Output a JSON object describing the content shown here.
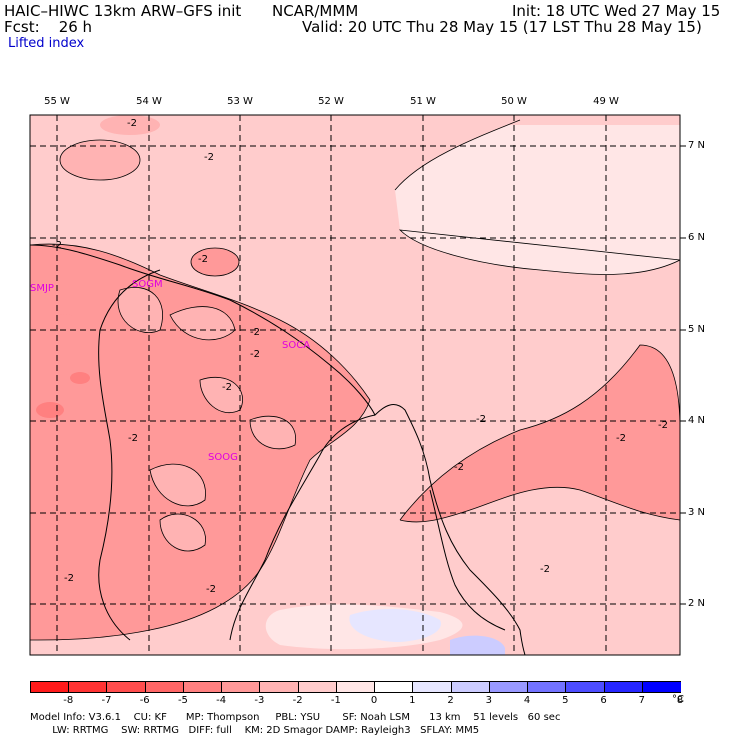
{
  "header": {
    "model": "HAIC–HIWC 13km ARW–GFS init",
    "agency": "NCAR/MMM",
    "init": "Init: 18 UTC Wed 27 May 15",
    "fcst": "Fcst:    26 h",
    "valid": "Valid: 20 UTC Thu 28 May 15 (17 LST Thu 28 May 15)",
    "field": "Lifted index"
  },
  "map": {
    "lon_labels": [
      "55 W",
      "54 W",
      "53 W",
      "52 W",
      "51 W",
      "50 W",
      "49 W"
    ],
    "lat_labels": [
      "7 N",
      "6 N",
      "5 N",
      "4 N",
      "3 N",
      "2 N"
    ],
    "stations": [
      "SMJP",
      "SOGM",
      "SOCA",
      "SOOG"
    ],
    "contour_labels": [
      "-2",
      "-2",
      "-2",
      "-2",
      "-2",
      "-2",
      "-2",
      "-2",
      "-2",
      "-2",
      "-2",
      "-2",
      "-2",
      "-2",
      "-2"
    ]
  },
  "colorbar": {
    "ticks": [
      "-8",
      "-7",
      "-6",
      "-5",
      "-4",
      "-3",
      "-2",
      "-1",
      "0",
      "1",
      "2",
      "3",
      "4",
      "5",
      "6",
      "7",
      "8"
    ],
    "unit": "°C",
    "colors": [
      "#ff1a1a",
      "#ff3333",
      "#ff4d4d",
      "#ff6666",
      "#ff8080",
      "#ff9999",
      "#ffb3b3",
      "#ffcccc",
      "#ffe6e6",
      "#ffffff",
      "#e6e6ff",
      "#ccccff",
      "#9999ff",
      "#7373ff",
      "#4d4dff",
      "#2626ff",
      "#0000ff"
    ]
  },
  "footer": {
    "line1": "Model Info: V3.6.1    CU: KF      MP: Thompson     PBL: YSU       SF: Noah LSM      13 km    51 levels   60 sec",
    "line2": "       LW: RRTMG    SW: RRTMG   DIFF: full    KM: 2D Smagor DAMP: Rayleigh3   SFLAY: MM5"
  }
}
